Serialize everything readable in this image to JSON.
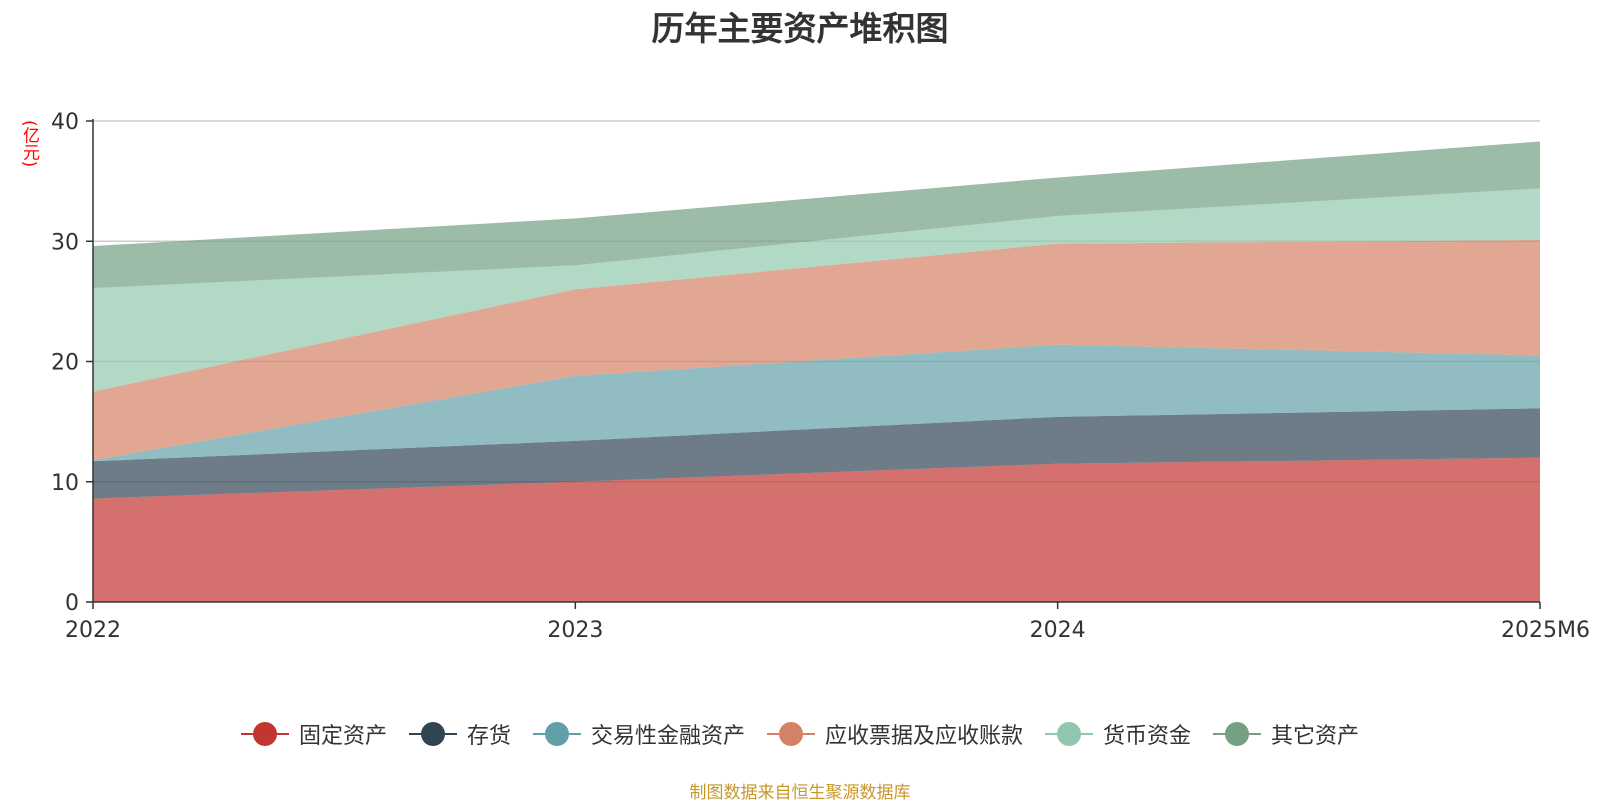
{
  "chart_data": {
    "type": "area",
    "stacked": true,
    "title": "历年主要资产堆积图",
    "unit_label": "(亿元)",
    "categories": [
      "2022",
      "2023",
      "2024",
      "2025M6"
    ],
    "yticks": [
      "0",
      "10",
      "20",
      "30",
      "40"
    ],
    "ylim": [
      0,
      40
    ],
    "series": [
      {
        "name": "固定资产",
        "color": "#c23531",
        "values": [
          8.6,
          10.0,
          11.5,
          12.0
        ]
      },
      {
        "name": "存货",
        "color": "#2f4554",
        "values": [
          3.1,
          3.4,
          3.9,
          4.1
        ]
      },
      {
        "name": "交易性金融资产",
        "color": "#61a0a8",
        "values": [
          0.1,
          5.4,
          6.0,
          4.4
        ]
      },
      {
        "name": "应收票据及应收账款",
        "color": "#d48265",
        "values": [
          5.7,
          7.2,
          8.4,
          9.6
        ]
      },
      {
        "name": "货币资金",
        "color": "#91c7ae",
        "values": [
          8.6,
          2.0,
          2.3,
          4.3
        ]
      },
      {
        "name": "其它资产",
        "color": "#749f83",
        "values": [
          3.5,
          3.9,
          3.2,
          3.9
        ]
      }
    ],
    "source": "制图数据来自恒生聚源数据库"
  }
}
